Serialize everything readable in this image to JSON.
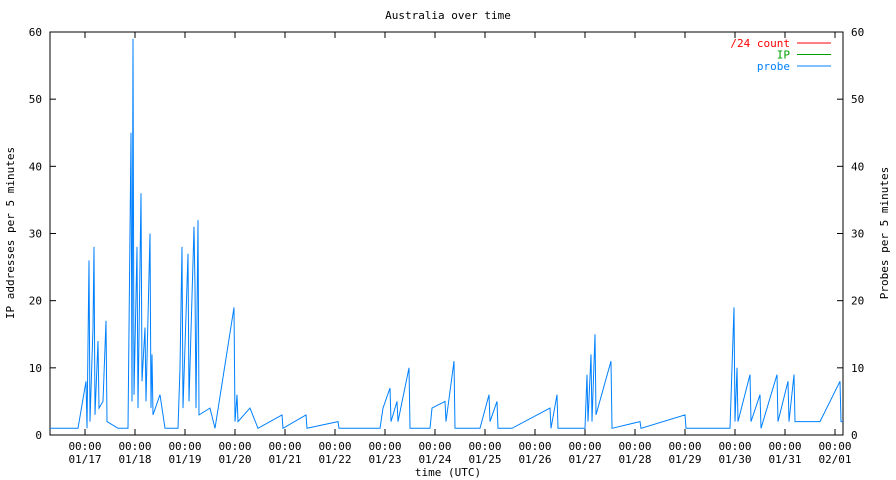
{
  "chart_data": {
    "type": "line",
    "title": "Australia over time",
    "x_label": "time (UTC)",
    "y_label": "IP addresses per 5 minutes",
    "y2_label": "Probes per 5 minutes",
    "xlim": [
      "01/16 07:12",
      "02/01 03:50"
    ],
    "xticks": [
      {
        "value": "01/17 00:00",
        "label": [
          "00:00",
          "01/17"
        ]
      },
      {
        "value": "01/18 00:00",
        "label": [
          "00:00",
          "01/18"
        ]
      },
      {
        "value": "01/19 00:00",
        "label": [
          "00:00",
          "01/19"
        ]
      },
      {
        "value": "01/20 00:00",
        "label": [
          "00:00",
          "01/20"
        ]
      },
      {
        "value": "01/21 00:00",
        "label": [
          "00:00",
          "01/21"
        ]
      },
      {
        "value": "01/22 00:00",
        "label": [
          "00:00",
          "01/22"
        ]
      },
      {
        "value": "01/23 00:00",
        "label": [
          "00:00",
          "01/23"
        ]
      },
      {
        "value": "01/24 00:00",
        "label": [
          "00:00",
          "01/24"
        ]
      },
      {
        "value": "01/25 00:00",
        "label": [
          "00:00",
          "01/25"
        ]
      },
      {
        "value": "01/26 00:00",
        "label": [
          "00:00",
          "01/26"
        ]
      },
      {
        "value": "01/27 00:00",
        "label": [
          "00:00",
          "01/27"
        ]
      },
      {
        "value": "01/28 00:00",
        "label": [
          "00:00",
          "01/28"
        ]
      },
      {
        "value": "01/29 00:00",
        "label": [
          "00:00",
          "01/29"
        ]
      },
      {
        "value": "01/30 00:00",
        "label": [
          "00:00",
          "01/30"
        ]
      },
      {
        "value": "01/31 00:00",
        "label": [
          "00:00",
          "01/31"
        ]
      },
      {
        "value": "02/01 00:00",
        "label": [
          "00:00",
          "02/01"
        ]
      }
    ],
    "ylim": [
      0,
      60
    ],
    "yticks": [
      0,
      10,
      20,
      30,
      40,
      50,
      60
    ],
    "y2lim": [
      0,
      60
    ],
    "y2ticks": [
      0,
      10,
      20,
      30,
      40,
      50,
      60
    ],
    "legend": "top-right",
    "grid": false,
    "series": [
      {
        "name": "/24 count",
        "color": "#ff0000",
        "x": [],
        "values": []
      },
      {
        "name": "IP",
        "color": "#00a000",
        "x": [],
        "values": []
      },
      {
        "name": "probe",
        "color": "#0080ff",
        "axis": "y2",
        "x": [
          "01/16 07:12",
          "01/16 20:38",
          "01/17 00:29",
          "01/17 00:58",
          "01/17 01:55",
          "01/17 02:24",
          "01/17 03:50",
          "01/17 04:19",
          "01/17 04:48",
          "01/17 06:14",
          "01/17 06:43",
          "01/17 08:38",
          "01/17 10:05",
          "01/17 10:34",
          "01/17 15:50",
          "01/17 20:38",
          "01/17 22:05",
          "01/17 22:34",
          "01/17 23:02",
          "01/17 23:31",
          "01/18 00:58",
          "01/18 01:26",
          "01/18 02:53",
          "01/18 03:22",
          "01/18 04:48",
          "01/18 05:17",
          "01/18 07:12",
          "01/18 07:41",
          "01/18 08:10",
          "01/18 08:38",
          "01/18 12:00",
          "01/18 14:24",
          "01/18 20:38",
          "01/18 21:36",
          "01/18 22:34",
          "01/18 23:02",
          "01/19 01:26",
          "01/19 01:55",
          "01/19 04:19",
          "01/19 04:48",
          "01/19 05:17",
          "01/19 06:14",
          "01/19 06:43",
          "01/19 12:00",
          "01/19 14:24",
          "01/19 23:31",
          "01/20 00:00",
          "01/20 00:58",
          "01/20 01:26",
          "01/20 07:12",
          "01/20 11:02",
          "01/20 22:34",
          "01/20 23:02",
          "01/21 10:05",
          "01/21 10:34",
          "01/22 01:26",
          "01/22 01:55",
          "01/22 21:36",
          "01/22 23:02",
          "01/23 02:24",
          "01/23 02:53",
          "01/23 05:46",
          "01/23 06:14",
          "01/23 11:31",
          "01/23 12:00",
          "01/23 21:36",
          "01/23 22:34",
          "01/24 04:48",
          "01/24 05:17",
          "01/24 09:07",
          "01/24 09:36",
          "01/24 21:36",
          "01/25 01:55",
          "01/25 02:24",
          "01/25 05:46",
          "01/25 06:14",
          "01/25 12:58",
          "01/26 07:12",
          "01/26 07:41",
          "01/26 10:34",
          "01/26 11:02",
          "01/27 00:00",
          "01/27 00:58",
          "01/27 01:26",
          "01/27 02:53",
          "01/27 03:22",
          "01/27 04:48",
          "01/27 05:17",
          "01/27 12:29",
          "01/27 12:58",
          "01/28 02:24",
          "01/28 02:53",
          "01/29 00:00",
          "01/29 00:29",
          "01/29 21:36",
          "01/29 23:31",
          "01/30 00:00",
          "01/30 00:58",
          "01/30 01:26",
          "01/30 07:12",
          "01/30 07:41",
          "01/30 12:00",
          "01/30 12:29",
          "01/30 20:10",
          "01/30 20:38",
          "01/31 01:26",
          "01/31 01:55",
          "01/31 04:19",
          "01/31 04:48",
          "01/31 16:48",
          "02/01 02:24",
          "02/01 02:53",
          "02/01 03:50"
        ],
        "values": [
          1,
          1,
          8,
          1,
          26,
          2,
          16,
          28,
          3,
          14,
          4,
          5,
          17,
          2,
          1,
          1,
          45,
          5,
          59,
          6,
          28,
          4,
          36,
          8,
          16,
          5,
          30,
          4,
          12,
          3,
          6,
          1,
          1,
          10,
          28,
          4,
          27,
          5,
          31,
          22,
          4,
          32,
          3,
          4,
          1,
          19,
          2,
          6,
          2,
          4,
          1,
          3,
          1,
          3,
          1,
          2,
          1,
          1,
          4,
          7,
          2,
          5,
          2,
          10,
          1,
          1,
          4,
          5,
          2,
          11,
          1,
          1,
          6,
          2,
          5,
          1,
          1,
          4,
          1,
          6,
          1,
          1,
          9,
          2,
          12,
          2,
          15,
          3,
          11,
          1,
          2,
          1,
          3,
          1,
          1,
          19,
          2,
          10,
          2,
          9,
          2,
          6,
          1,
          9,
          2,
          8,
          2,
          9,
          2,
          2,
          8,
          2,
          2
        ]
      }
    ]
  }
}
